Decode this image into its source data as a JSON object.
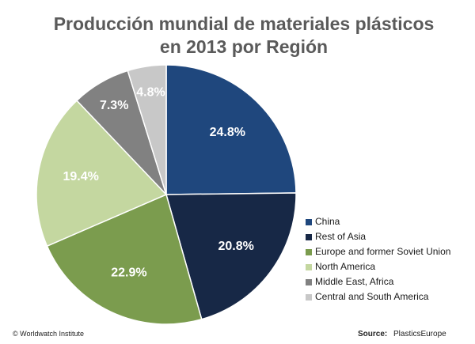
{
  "chart_data": {
    "type": "pie",
    "title_lines": [
      "Producción  mundial de materiales plásticos",
      "en 2013 por Región"
    ],
    "categories": [
      "China",
      "Rest of Asia",
      "Europe and former Soviet Union",
      "North America",
      "Middle East, Africa",
      "Central and South America"
    ],
    "values": [
      24.8,
      20.8,
      22.9,
      19.4,
      7.3,
      4.8
    ],
    "value_labels": [
      "24.8%",
      "20.8%",
      "22.9%",
      "19.4%",
      "7.3%",
      "4.8%"
    ],
    "colors": [
      "#1f477d",
      "#172846",
      "#7b9c4e",
      "#c4d7a0",
      "#818181",
      "#c8c8c8"
    ],
    "legend_position": "right",
    "start_angle": "top",
    "direction": "clockwise"
  },
  "footer": {
    "copyright": "© Worldwatch  Institute",
    "source_label": "Source:",
    "source_value": "PlasticsEurope"
  }
}
